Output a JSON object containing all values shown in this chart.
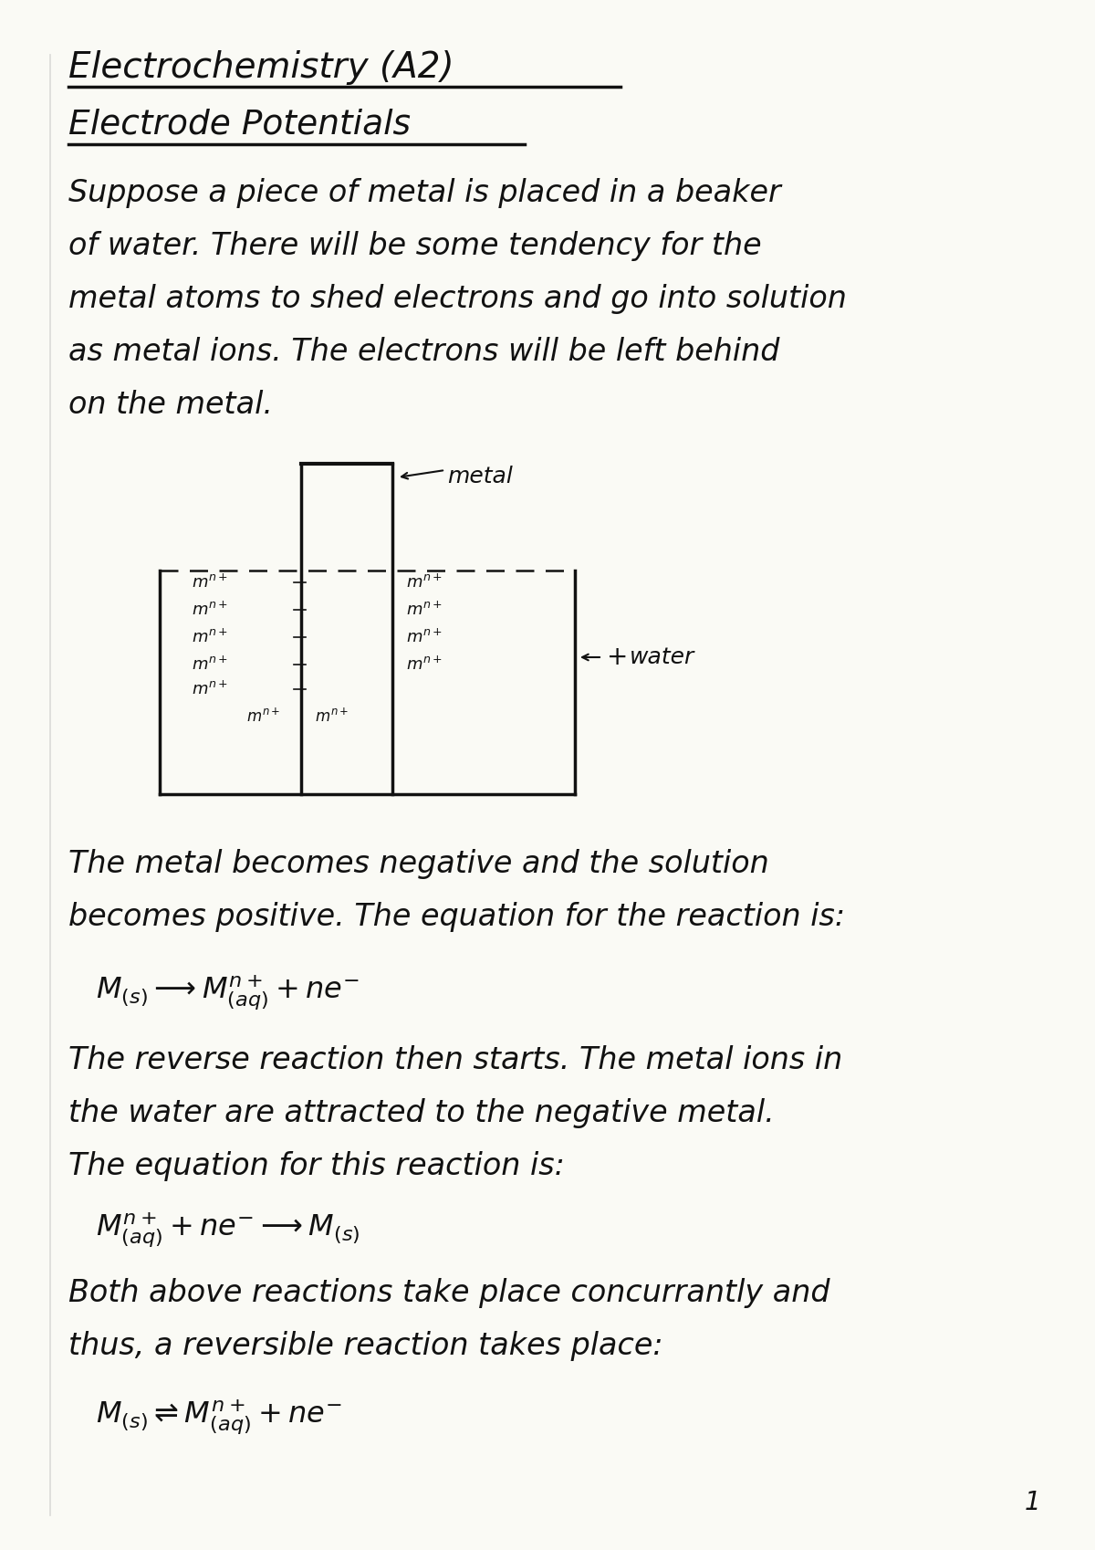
{
  "paper_color": "#fafaf5",
  "text_color": "#111111",
  "title1": "Electrochemistry (A2)",
  "title2": "Electrode Potentials",
  "para1": [
    "Suppose a piece of metal is placed in a beaker",
    "of water. There will be some tendency for the",
    "metal atoms to shed electrons and go into solution",
    "as metal ions. The electrons will be left behind",
    "on the metal."
  ],
  "para2": [
    "The metal becomes negative and the solution",
    "becomes positive. The equation for the reaction is:"
  ],
  "eq1": "$M_{(s)} \\longrightarrow M^{n+}_{(aq)} + ne^{-}$",
  "para3": [
    "The reverse reaction then starts. The metal ions in",
    "the water are attracted to the negative metal.",
    "The equation for this reaction is:"
  ],
  "eq2": "$M^{n+}_{(aq)} + ne^{-} \\longrightarrow M_{(s)}$",
  "para4": [
    "Both above reactions take place concurrantly and",
    "thus, a reversible reaction takes place:"
  ],
  "eq3": "$M_{(s)} \\rightleftharpoons M^{n+}_{(aq)} + ne^{-}$",
  "page_num": "1"
}
